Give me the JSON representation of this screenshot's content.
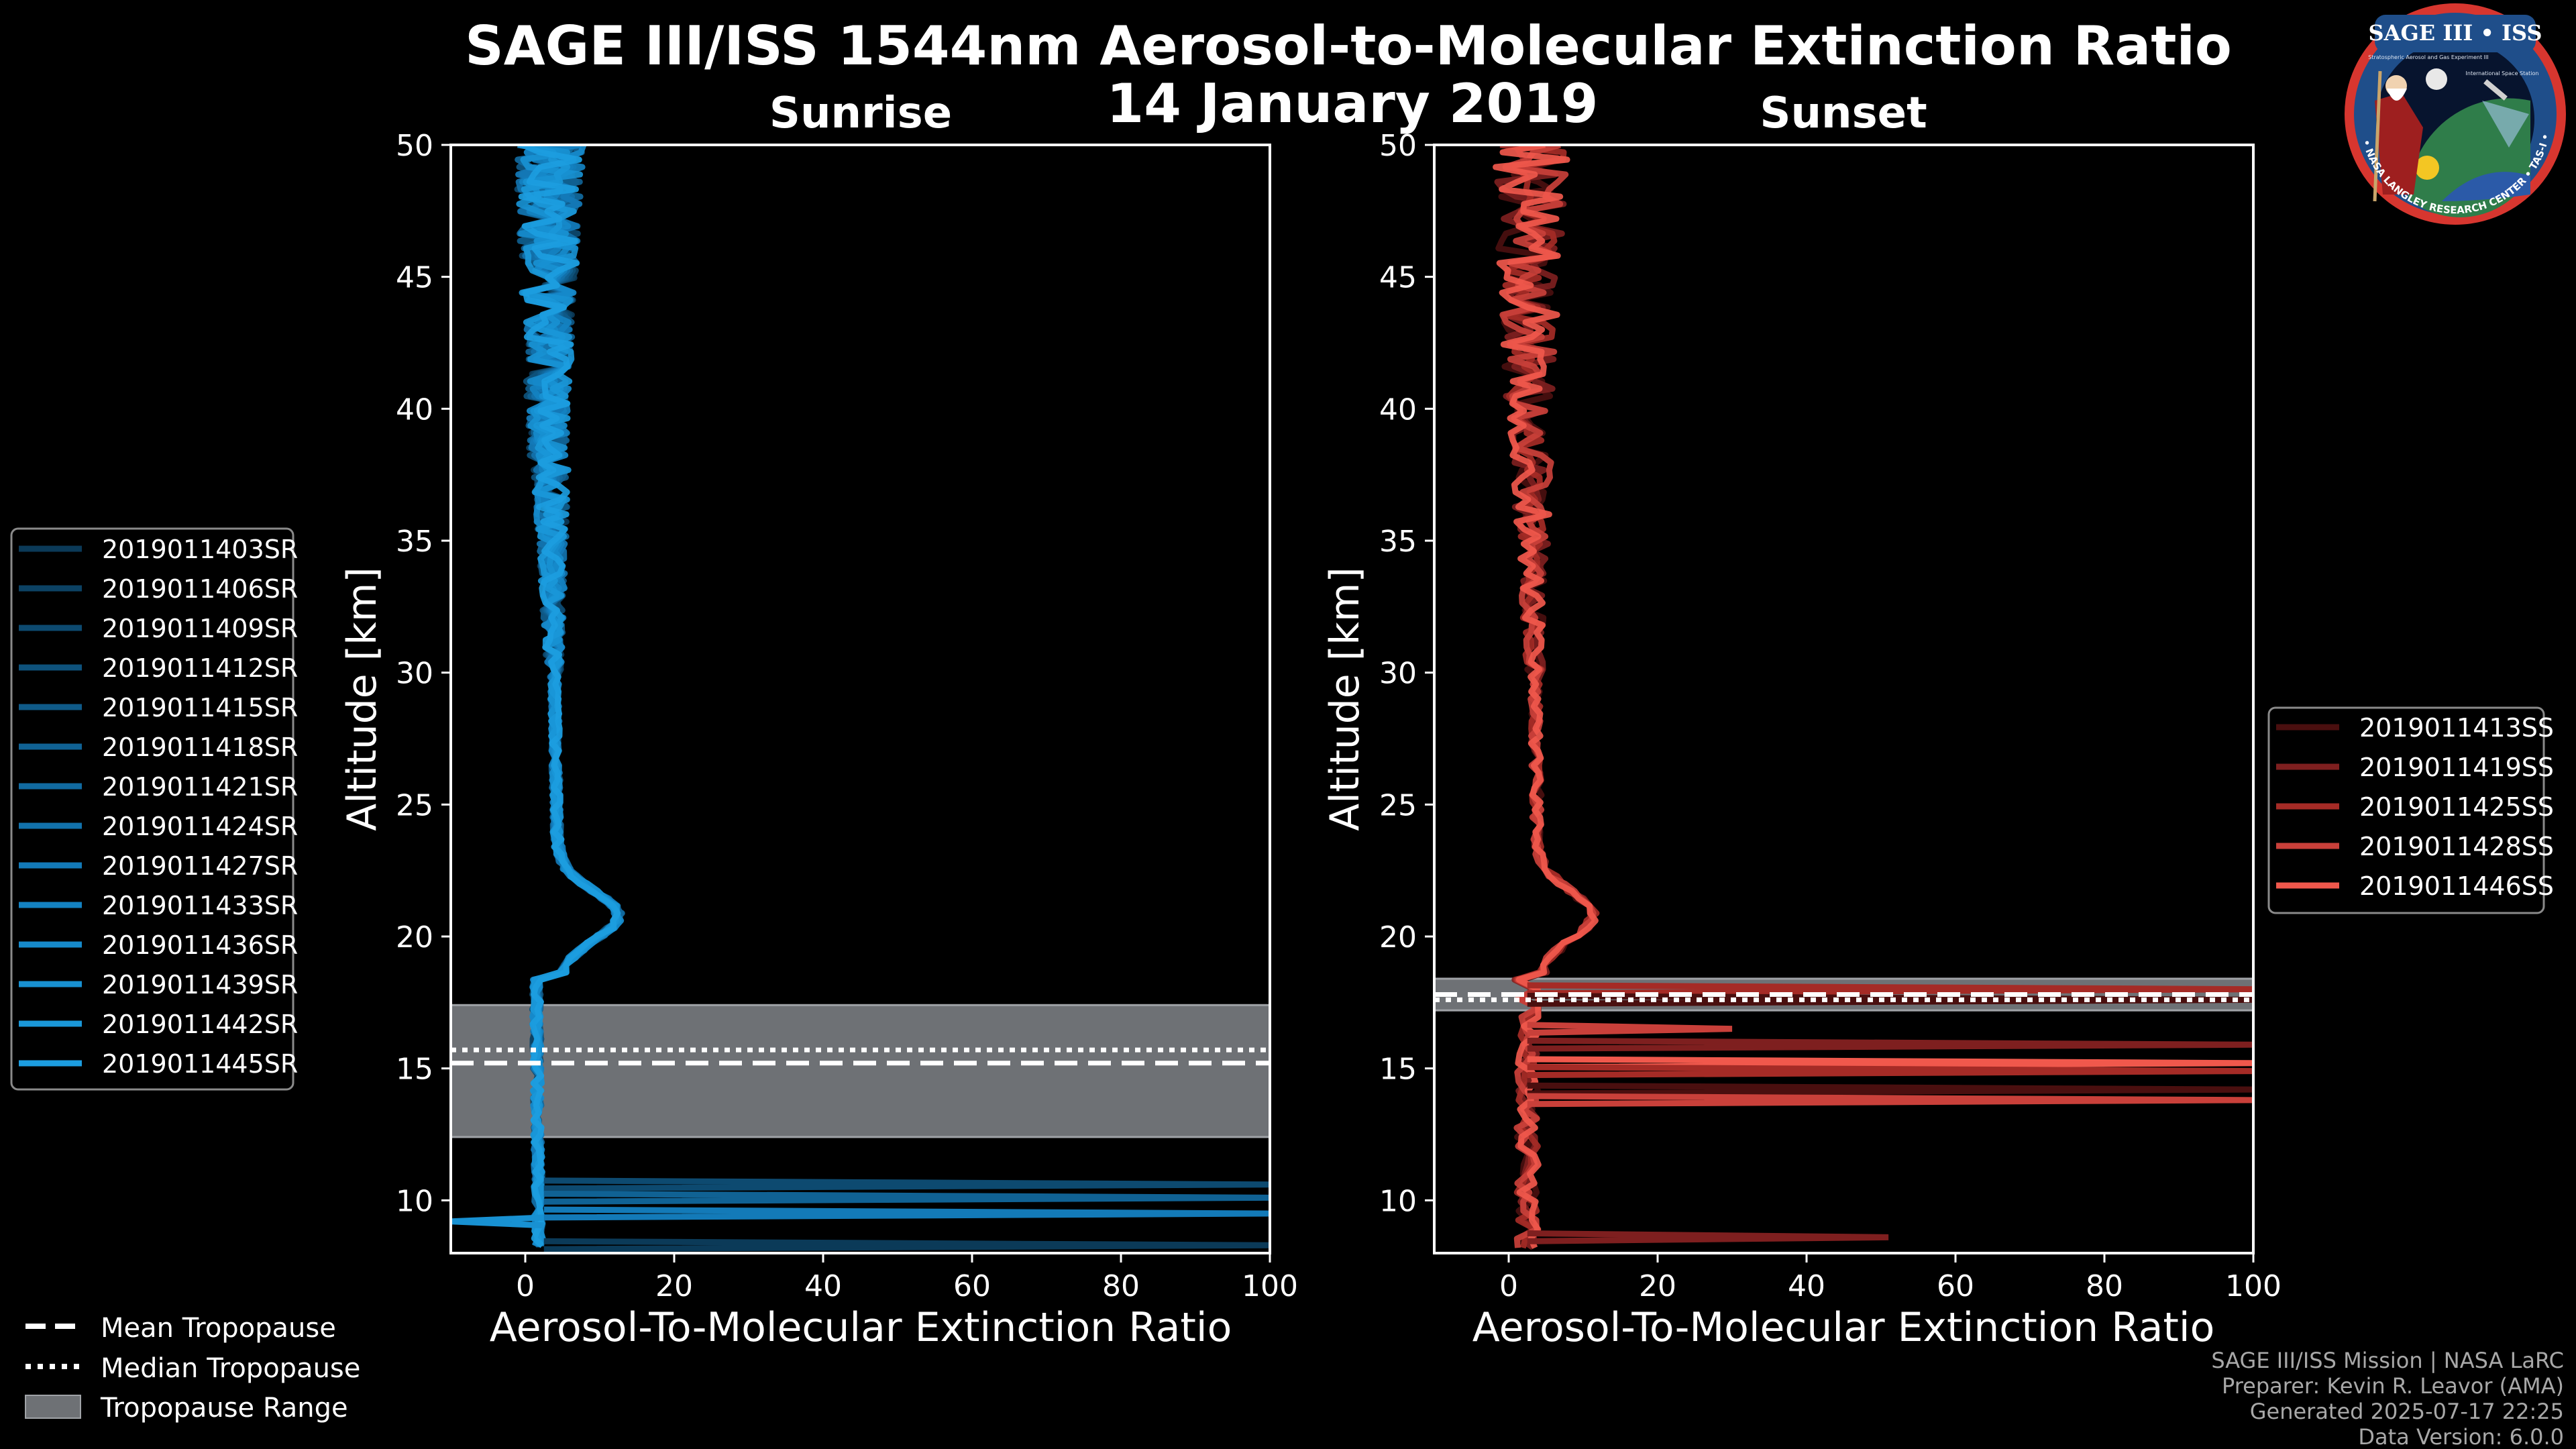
{
  "chart_data": [
    {
      "type": "line",
      "panel": "sunrise",
      "title": "Sunrise",
      "xlabel": "Aerosol-To-Molecular Extinction Ratio",
      "ylabel": "Altitude [km]",
      "xlim": [
        -10,
        100
      ],
      "ylim": [
        8,
        50
      ],
      "xticks": [
        0,
        20,
        40,
        60,
        80,
        100
      ],
      "yticks": [
        10,
        15,
        20,
        25,
        30,
        35,
        40,
        45,
        50
      ],
      "tropopause": {
        "mean": 15.2,
        "median": 15.7,
        "range": [
          12.4,
          17.4
        ]
      },
      "legend_position": "left",
      "series": [
        {
          "name": "2019011403SR",
          "color": "#0b3a58"
        },
        {
          "name": "2019011406SR",
          "color": "#0c4264"
        },
        {
          "name": "2019011409SR",
          "color": "#0d4a70"
        },
        {
          "name": "2019011412SR",
          "color": "#0e527c"
        },
        {
          "name": "2019011415SR",
          "color": "#0f5a88"
        },
        {
          "name": "2019011418SR",
          "color": "#106294"
        },
        {
          "name": "2019011421SR",
          "color": "#116aa0"
        },
        {
          "name": "2019011424SR",
          "color": "#1272ac"
        },
        {
          "name": "2019011427SR",
          "color": "#137ab8"
        },
        {
          "name": "2019011433SR",
          "color": "#1482c2"
        },
        {
          "name": "2019011436SR",
          "color": "#168acb"
        },
        {
          "name": "2019011439SR",
          "color": "#1891d2"
        },
        {
          "name": "2019011442SR",
          "color": "#1a97d8"
        },
        {
          "name": "2019011445SR",
          "color": "#1c9de0"
        }
      ],
      "spikes": [
        {
          "alt": 10.6,
          "x": 100
        },
        {
          "alt": 10.1,
          "x": 100
        },
        {
          "alt": 9.5,
          "x": 100
        },
        {
          "alt": 9.2,
          "x": -10
        },
        {
          "alt": 8.3,
          "x": 100
        }
      ]
    },
    {
      "type": "line",
      "panel": "sunset",
      "title": "Sunset",
      "xlabel": "Aerosol-To-Molecular Extinction Ratio",
      "ylabel": "Altitude [km]",
      "xlim": [
        -10,
        100
      ],
      "ylim": [
        8,
        50
      ],
      "xticks": [
        0,
        20,
        40,
        60,
        80,
        100
      ],
      "yticks": [
        10,
        15,
        20,
        25,
        30,
        35,
        40,
        45,
        50
      ],
      "tropopause": {
        "mean": 17.8,
        "median": 17.6,
        "range": [
          17.2,
          18.4
        ]
      },
      "legend_position": "right",
      "series": [
        {
          "name": "2019011413SS",
          "color": "#4a0f0f"
        },
        {
          "name": "2019011419SS",
          "color": "#7e1f1f"
        },
        {
          "name": "2019011425SS",
          "color": "#a52b26"
        },
        {
          "name": "2019011428SS",
          "color": "#c9403a"
        },
        {
          "name": "2019011446SS",
          "color": "#f0584c"
        }
      ],
      "spikes": [
        {
          "alt": 18.0,
          "x": 100
        },
        {
          "alt": 17.6,
          "x": 100
        },
        {
          "alt": 16.5,
          "x": 30
        },
        {
          "alt": 15.9,
          "x": 100
        },
        {
          "alt": 15.2,
          "x": 100
        },
        {
          "alt": 14.9,
          "x": 100
        },
        {
          "alt": 14.2,
          "x": 100
        },
        {
          "alt": 13.8,
          "x": 100
        },
        {
          "alt": 8.6,
          "x": 51
        }
      ]
    }
  ],
  "header": {
    "title_line1": "SAGE III/ISS 1544nm Aerosol-to-Molecular Extinction Ratio",
    "title_line2": "14 January 2019"
  },
  "logo": {
    "top_text": "SAGE III • ISS",
    "small_text_1": "Stratospheric Aerosol and Gas Experiment III",
    "small_text_2": "International Space Station",
    "ring_text": "BALL • NASA LANGLEY RESEARCH CENTER • TAS-I • ESA"
  },
  "tropopause_legend": [
    {
      "style": "dashed",
      "label": "Mean Tropopause"
    },
    {
      "style": "dotted",
      "label": "Median Tropopause"
    },
    {
      "style": "range",
      "label": "Tropopause Range"
    }
  ],
  "footer": {
    "line1": "SAGE III/ISS Mission | NASA LaRC",
    "line2": "Preparer: Kevin R. Leavor (AMA)",
    "line3": "Generated 2025-07-17 22:25",
    "line4": "Data Version: 6.0.0"
  },
  "colors": {
    "background": "#000000",
    "sunrise": "#1c9de0",
    "sunset": "#f0584c",
    "tropopause_range": "#6e7175",
    "axes": "#ffffff"
  }
}
